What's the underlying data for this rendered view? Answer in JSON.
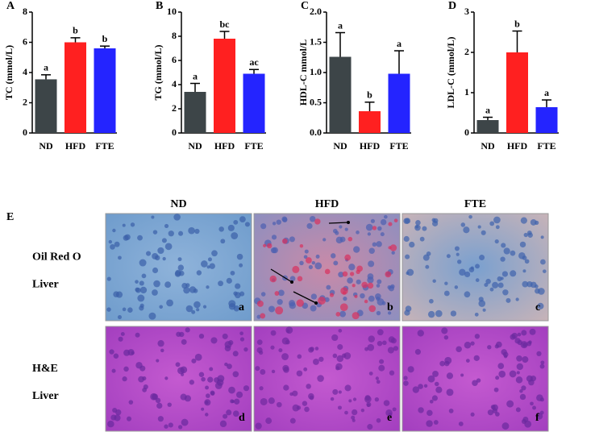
{
  "chart_data": [
    {
      "type": "bar",
      "panel": "A",
      "ylabel": "TC (mmol/L)",
      "categories": [
        "ND",
        "HFD",
        "FTE"
      ],
      "values": [
        3.55,
        6.0,
        5.6
      ],
      "errors": [
        0.3,
        0.3,
        0.15
      ],
      "letters": [
        "a",
        "b",
        "b"
      ],
      "colors": [
        "#3d4548",
        "#ff2020",
        "#2424ff"
      ],
      "ylim": [
        0,
        8
      ],
      "yticks": [
        0,
        2,
        4,
        6,
        8
      ]
    },
    {
      "type": "bar",
      "panel": "B",
      "ylabel": "TG (mmol/L)",
      "categories": [
        "ND",
        "HFD",
        "FTE"
      ],
      "values": [
        3.4,
        7.8,
        4.9
      ],
      "errors": [
        0.7,
        0.6,
        0.35
      ],
      "letters": [
        "a",
        "bc",
        "ac"
      ],
      "colors": [
        "#3d4548",
        "#ff2020",
        "#2424ff"
      ],
      "ylim": [
        0,
        10
      ],
      "yticks": [
        0,
        2,
        4,
        6,
        8,
        10
      ]
    },
    {
      "type": "bar",
      "panel": "C",
      "ylabel": "HDL-C mmol/L",
      "categories": [
        "ND",
        "HFD",
        "FTE"
      ],
      "values": [
        1.26,
        0.36,
        0.98
      ],
      "errors": [
        0.4,
        0.15,
        0.38
      ],
      "letters": [
        "a",
        "b",
        "a"
      ],
      "colors": [
        "#3d4548",
        "#ff2020",
        "#2424ff"
      ],
      "ylim": [
        0,
        2
      ],
      "yticks": [
        {
          "value": 0,
          "label": "0.0"
        },
        {
          "value": 0.5,
          "label": "0.5"
        },
        {
          "value": 1,
          "label": "1.0"
        },
        {
          "value": 1.5,
          "label": "1.5"
        },
        {
          "value": 2,
          "label": "2.0"
        }
      ]
    },
    {
      "type": "bar",
      "panel": "D",
      "ylabel": "LDL-C (mmol/L)",
      "categories": [
        "ND",
        "HFD",
        "FTE"
      ],
      "values": [
        0.32,
        2.0,
        0.64
      ],
      "errors": [
        0.07,
        0.53,
        0.18
      ],
      "letters": [
        "a",
        "b",
        "a"
      ],
      "colors": [
        "#3d4548",
        "#ff2020",
        "#2424ff"
      ],
      "ylim": [
        0,
        3
      ],
      "yticks": [
        0,
        1,
        2,
        3
      ]
    }
  ],
  "histology": {
    "label": "E",
    "columns": [
      "ND",
      "HFD",
      "FTE"
    ],
    "rows": [
      {
        "stain": "Oil Red O",
        "tissue": "Liver",
        "panels": [
          "a",
          "b",
          "c"
        ]
      },
      {
        "stain": "H&E",
        "tissue": "Liver",
        "panels": [
          "d",
          "e",
          "f"
        ]
      }
    ]
  }
}
